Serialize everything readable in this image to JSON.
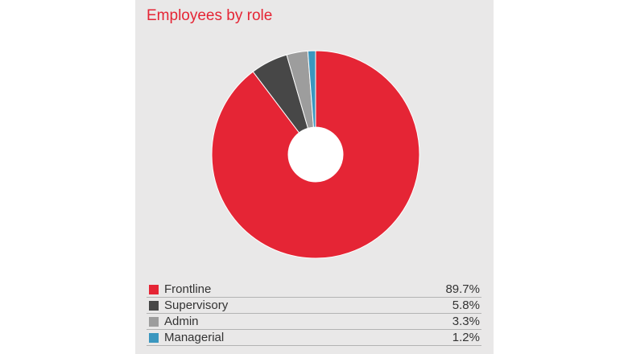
{
  "chart_data": {
    "type": "pie",
    "title": "Employees by role",
    "categories": [
      "Frontline",
      "Supervisory",
      "Admin",
      "Managerial"
    ],
    "values": [
      89.7,
      5.8,
      3.3,
      1.2
    ],
    "value_labels": [
      "89.7%",
      "5.8%",
      "3.3%",
      "1.2%"
    ],
    "colors": [
      "#e52535",
      "#474747",
      "#9d9d9d",
      "#3b97bf"
    ],
    "donut": true,
    "legend": "bottom"
  }
}
